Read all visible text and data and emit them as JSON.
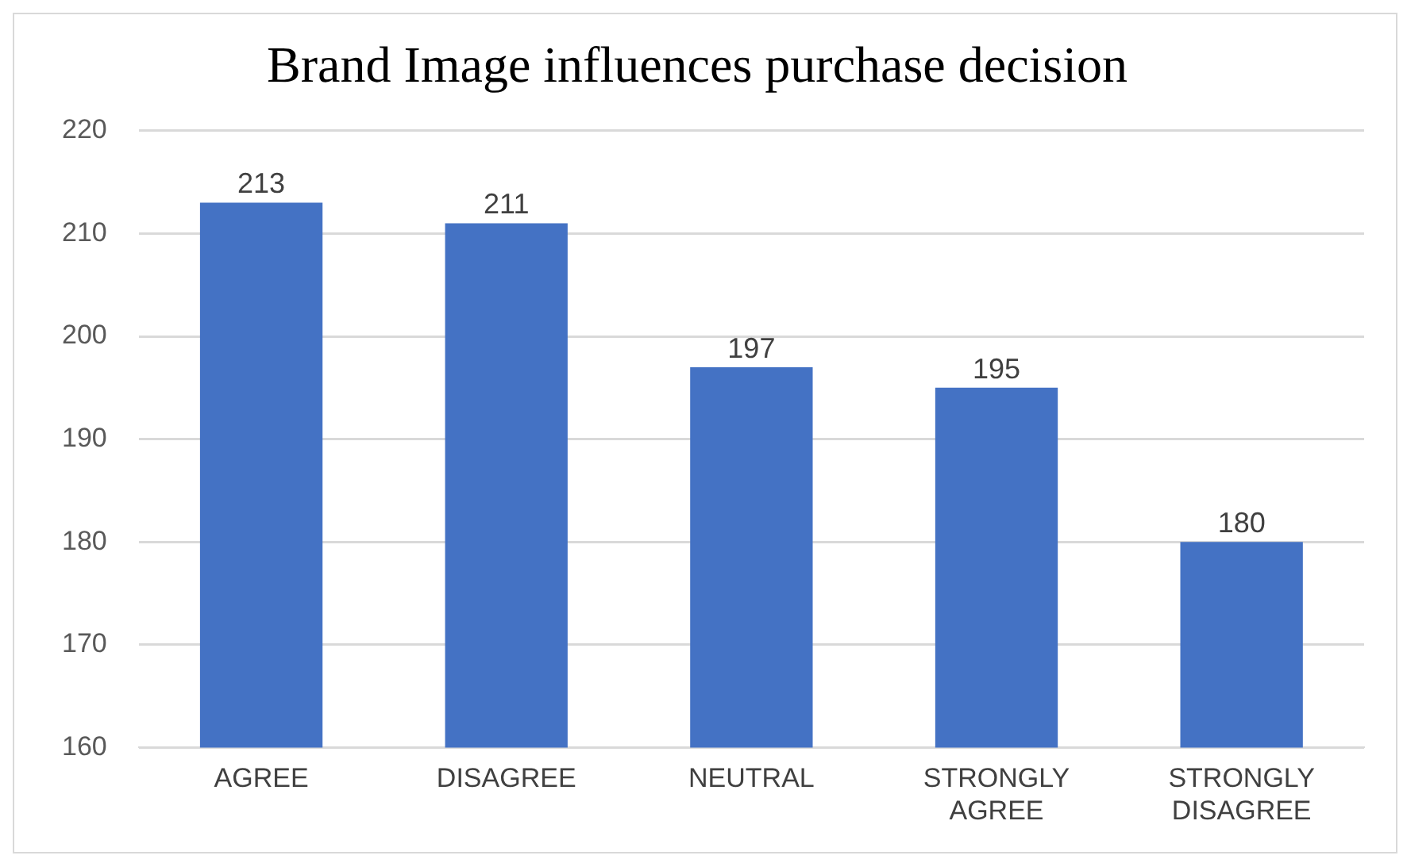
{
  "chart_data": {
    "type": "bar",
    "title": "Brand Image influences purchase decision",
    "categories": [
      "AGREE",
      "DISAGREE",
      "NEUTRAL",
      "STRONGLY AGREE",
      "STRONGLY DISAGREE"
    ],
    "values": [
      213,
      211,
      197,
      195,
      180
    ],
    "color": "#4472c4",
    "ylim": [
      160,
      220
    ],
    "yticks": [
      160,
      170,
      180,
      190,
      200,
      210,
      220
    ],
    "grid": "y",
    "data_labels": true
  }
}
